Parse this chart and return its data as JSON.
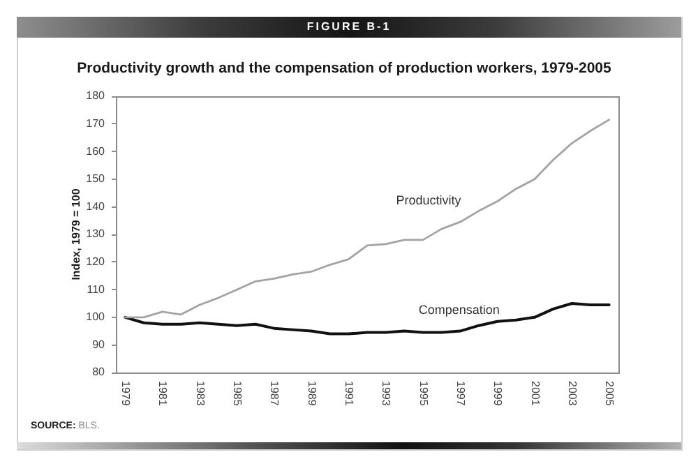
{
  "chart_data": {
    "type": "line",
    "title": "Productivity growth and the compensation of production workers, 1979-2005",
    "ylabel": "Index, 1979 = 100",
    "categories": [
      "1979",
      null,
      "1981",
      null,
      "1983",
      null,
      "1985",
      null,
      "1987",
      null,
      "1989",
      null,
      "1991",
      null,
      "1993",
      null,
      "1995",
      null,
      "1997",
      null,
      "1999",
      null,
      "2001",
      null,
      "2003",
      null,
      "2005"
    ],
    "series": [
      {
        "name": "Productivity",
        "color": "#a3a3a3",
        "values": [
          100,
          100,
          102,
          101,
          104.5,
          107,
          110,
          113,
          114,
          115.5,
          116.5,
          119,
          121,
          126,
          126.5,
          128,
          128,
          132,
          134.5,
          138.5,
          142,
          146.5,
          150,
          157,
          163,
          167.5,
          171.5
        ]
      },
      {
        "name": "Compensation",
        "color": "#111111",
        "values": [
          100,
          98,
          97.5,
          97.5,
          98,
          97.5,
          97,
          97.5,
          96,
          95.5,
          95,
          94,
          94,
          94.5,
          94.5,
          95,
          94.5,
          94.5,
          95,
          97,
          98.5,
          99,
          100,
          103,
          105,
          104.5,
          104.5
        ]
      }
    ],
    "ylim": [
      80,
      180
    ],
    "yticks": [
      80,
      90,
      100,
      110,
      120,
      130,
      140,
      150,
      160,
      170,
      180
    ],
    "annotations": [
      "FIGURE B-1",
      "SOURCE: BLS."
    ]
  }
}
